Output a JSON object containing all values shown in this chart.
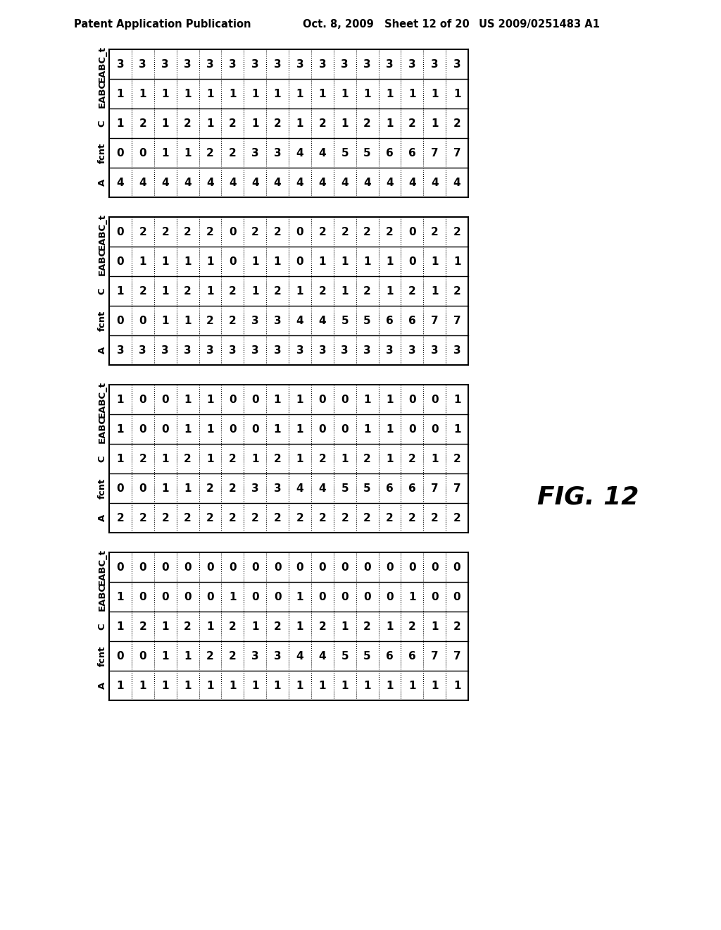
{
  "header_left": "Patent Application Publication",
  "header_mid": "Oct. 8, 2009   Sheet 12 of 20",
  "header_right": "US 2009/0251483 A1",
  "fig_label": "FIG. 12",
  "background_color": "#ffffff",
  "tables": [
    {
      "rows_top_to_bottom": [
        [
          3,
          3,
          3,
          3,
          3,
          3,
          3,
          3,
          3,
          3,
          3,
          3,
          3,
          3,
          3,
          3
        ],
        [
          1,
          1,
          1,
          1,
          1,
          1,
          1,
          1,
          1,
          1,
          1,
          1,
          1,
          1,
          1,
          1
        ],
        [
          1,
          2,
          1,
          2,
          1,
          2,
          1,
          2,
          1,
          2,
          1,
          2,
          1,
          2,
          1,
          2
        ],
        [
          0,
          0,
          1,
          1,
          2,
          2,
          3,
          3,
          4,
          4,
          5,
          5,
          6,
          6,
          7,
          7
        ],
        [
          4,
          4,
          4,
          4,
          4,
          4,
          4,
          4,
          4,
          4,
          4,
          4,
          4,
          4,
          4,
          4
        ]
      ],
      "row_labels_bottom_to_top": [
        "A",
        "fcnt",
        "C",
        "EABC",
        "EABC_t"
      ]
    },
    {
      "rows_top_to_bottom": [
        [
          0,
          2,
          2,
          2,
          2,
          0,
          2,
          2,
          0,
          2,
          2,
          2,
          2,
          0,
          2,
          2
        ],
        [
          0,
          1,
          1,
          1,
          1,
          0,
          1,
          1,
          0,
          1,
          1,
          1,
          1,
          0,
          1,
          1
        ],
        [
          1,
          2,
          1,
          2,
          1,
          2,
          1,
          2,
          1,
          2,
          1,
          2,
          1,
          2,
          1,
          2
        ],
        [
          0,
          0,
          1,
          1,
          2,
          2,
          3,
          3,
          4,
          4,
          5,
          5,
          6,
          6,
          7,
          7
        ],
        [
          3,
          3,
          3,
          3,
          3,
          3,
          3,
          3,
          3,
          3,
          3,
          3,
          3,
          3,
          3,
          3
        ]
      ],
      "row_labels_bottom_to_top": [
        "A",
        "fcnt",
        "C",
        "EABC",
        "EABC_t"
      ]
    },
    {
      "rows_top_to_bottom": [
        [
          1,
          0,
          0,
          1,
          1,
          0,
          0,
          1,
          1,
          0,
          0,
          1,
          1,
          0,
          0,
          1
        ],
        [
          1,
          0,
          0,
          1,
          1,
          0,
          0,
          1,
          1,
          0,
          0,
          1,
          1,
          0,
          0,
          1
        ],
        [
          1,
          2,
          1,
          2,
          1,
          2,
          1,
          2,
          1,
          2,
          1,
          2,
          1,
          2,
          1,
          2
        ],
        [
          0,
          0,
          1,
          1,
          2,
          2,
          3,
          3,
          4,
          4,
          5,
          5,
          6,
          6,
          7,
          7
        ],
        [
          2,
          2,
          2,
          2,
          2,
          2,
          2,
          2,
          2,
          2,
          2,
          2,
          2,
          2,
          2,
          2
        ]
      ],
      "row_labels_bottom_to_top": [
        "A",
        "fcnt",
        "C",
        "EABC",
        "EABC_t"
      ]
    },
    {
      "rows_top_to_bottom": [
        [
          0,
          0,
          0,
          0,
          0,
          0,
          0,
          0,
          0,
          0,
          0,
          0,
          0,
          0,
          0,
          0
        ],
        [
          1,
          0,
          0,
          0,
          0,
          1,
          0,
          0,
          1,
          0,
          0,
          0,
          0,
          1,
          0,
          0
        ],
        [
          1,
          2,
          1,
          2,
          1,
          2,
          1,
          2,
          1,
          2,
          1,
          2,
          1,
          2,
          1,
          2
        ],
        [
          0,
          0,
          1,
          1,
          2,
          2,
          3,
          3,
          4,
          4,
          5,
          5,
          6,
          6,
          7,
          7
        ],
        [
          1,
          1,
          1,
          1,
          1,
          1,
          1,
          1,
          1,
          1,
          1,
          1,
          1,
          1,
          1,
          1
        ]
      ],
      "row_labels_bottom_to_top": [
        "A",
        "fcnt",
        "C",
        "EABC",
        "EABC_t"
      ]
    }
  ]
}
